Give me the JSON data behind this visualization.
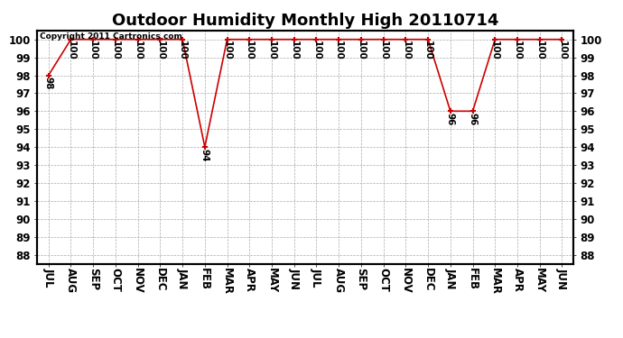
{
  "title": "Outdoor Humidity Monthly High 20110714",
  "copyright_text": "Copyright 2011 Cartronics.com",
  "x_labels": [
    "JUL",
    "AUG",
    "SEP",
    "OCT",
    "NOV",
    "DEC",
    "JAN",
    "FEB",
    "MAR",
    "APR",
    "MAY",
    "JUN",
    "JUL",
    "AUG",
    "SEP",
    "OCT",
    "NOV",
    "DEC",
    "JAN",
    "FEB",
    "MAR",
    "APR",
    "MAY",
    "JUN"
  ],
  "y_values": [
    98,
    100,
    100,
    100,
    100,
    100,
    100,
    94,
    100,
    100,
    100,
    100,
    100,
    100,
    100,
    100,
    100,
    100,
    96,
    96,
    100,
    100,
    100,
    100
  ],
  "line_color": "#CC0000",
  "marker": "+",
  "marker_color": "#CC0000",
  "background_color": "#FFFFFF",
  "grid_color": "#AAAAAA",
  "ylim_min": 88,
  "ylim_max": 100,
  "ytick_step": 1,
  "title_fontsize": 13,
  "label_fontsize": 8.5,
  "annotation_fontsize": 7.5,
  "copyright_fontsize": 6.5
}
